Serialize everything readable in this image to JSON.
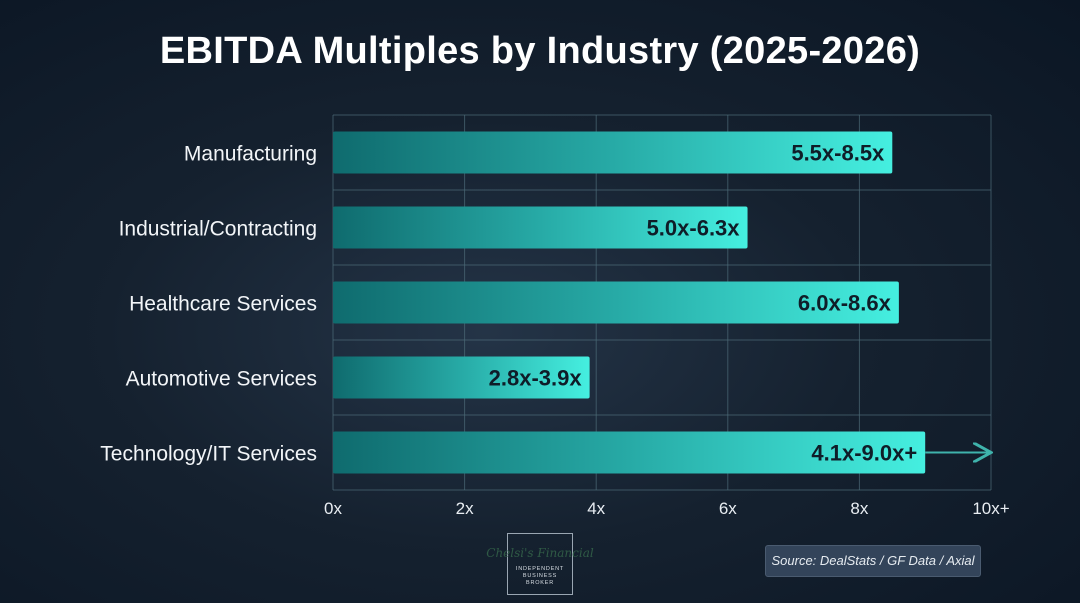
{
  "chart_data": {
    "type": "bar",
    "orientation": "horizontal",
    "title": "EBITDA Multiples by Industry (2025-2026)",
    "categories": [
      "Manufacturing",
      "Industrial/Contracting",
      "Healthcare Services",
      "Automotive Services",
      "Technology/IT Services"
    ],
    "ranges": [
      [
        5.5,
        8.5
      ],
      [
        5.0,
        6.3
      ],
      [
        6.0,
        8.6
      ],
      [
        2.8,
        3.9
      ],
      [
        4.1,
        9.0
      ]
    ],
    "values": [
      8.5,
      6.3,
      8.6,
      3.9,
      9.0
    ],
    "data_labels": [
      "5.5x-8.5x",
      "5.0x-6.3x",
      "6.0x-8.6x",
      "2.8x-3.9x",
      "4.1x-9.0x+"
    ],
    "open_ended": [
      false,
      false,
      false,
      false,
      true
    ],
    "xlim": [
      0,
      10
    ],
    "xticks": [
      0,
      2,
      4,
      6,
      8,
      10
    ],
    "xtick_labels": [
      "0x",
      "2x",
      "4x",
      "6x",
      "8x",
      "10x+"
    ],
    "grid": true,
    "colors": {
      "bar_start": "#0f6b6e",
      "bar_end": "#45efe0",
      "grid": "#4d6b78"
    }
  },
  "footer": {
    "source": "Source: DealStats / GF Data / Axial",
    "logo_script": "Chelsi's Financial",
    "logo_sub": "INDEPENDENT BUSINESS BROKER"
  }
}
